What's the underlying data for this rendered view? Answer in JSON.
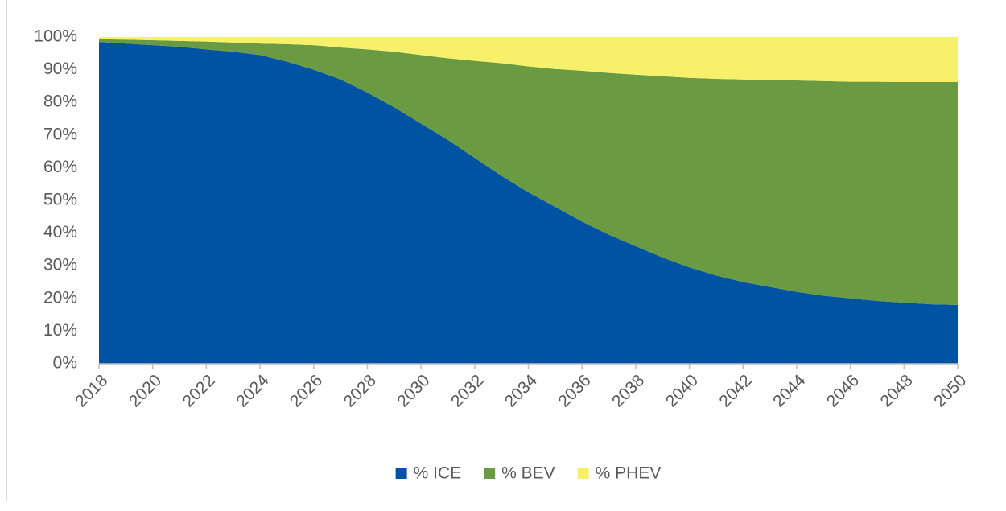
{
  "chart_data": {
    "type": "stacked_area",
    "x": [
      2018,
      2019,
      2020,
      2021,
      2022,
      2023,
      2024,
      2025,
      2026,
      2027,
      2028,
      2029,
      2030,
      2031,
      2032,
      2033,
      2034,
      2035,
      2036,
      2037,
      2038,
      2039,
      2040,
      2041,
      2042,
      2043,
      2044,
      2045,
      2046,
      2047,
      2048,
      2049,
      2050
    ],
    "series": [
      {
        "name": "% ICE",
        "color": "#0052a3",
        "values": [
          98.5,
          98,
          97.5,
          97,
          96.2,
          95.5,
          94.5,
          92.5,
          90,
          87,
          83,
          78.5,
          73.5,
          68.5,
          63,
          57.5,
          52.5,
          48,
          43.5,
          39.5,
          36,
          32.5,
          29.5,
          27,
          25,
          23.5,
          22,
          20.8,
          20,
          19.2,
          18.7,
          18.2,
          18
        ]
      },
      {
        "name": "% BEV",
        "color": "#6a9a42",
        "values": [
          0.8,
          1.2,
          1.5,
          1.8,
          2.4,
          2.8,
          3.5,
          5.3,
          7.5,
          9.8,
          13.2,
          17,
          21,
          25,
          29.7,
          34.5,
          38.5,
          42.2,
          46.2,
          49.5,
          52.5,
          55.5,
          58,
          60.2,
          62,
          63.3,
          64.7,
          65.7,
          66.3,
          67.1,
          67.5,
          68,
          68.2
        ]
      },
      {
        "name": "% PHEV",
        "color": "#f7f06a",
        "values": [
          0.7,
          0.8,
          1,
          1.2,
          1.4,
          1.7,
          2,
          2.2,
          2.5,
          3.2,
          3.8,
          4.5,
          5.5,
          6.5,
          7.3,
          8,
          9,
          9.8,
          10.3,
          11,
          11.5,
          12,
          12.5,
          12.8,
          13,
          13.2,
          13.3,
          13.5,
          13.7,
          13.7,
          13.8,
          13.8,
          13.8
        ]
      }
    ],
    "xlim": [
      2018,
      2050
    ],
    "xticks": [
      2018,
      2020,
      2022,
      2024,
      2026,
      2028,
      2030,
      2032,
      2034,
      2036,
      2038,
      2040,
      2042,
      2044,
      2046,
      2048,
      2050
    ],
    "ylim": [
      0,
      100
    ],
    "yticks": [
      {
        "value": 0,
        "label": "0%"
      },
      {
        "value": 10,
        "label": "10%"
      },
      {
        "value": 20,
        "label": "20%"
      },
      {
        "value": 30,
        "label": "30%"
      },
      {
        "value": 40,
        "label": "40%"
      },
      {
        "value": 50,
        "label": "50%"
      },
      {
        "value": 60,
        "label": "60%"
      },
      {
        "value": 70,
        "label": "70%"
      },
      {
        "value": 80,
        "label": "80%"
      },
      {
        "value": 90,
        "label": "90%"
      },
      {
        "value": 100,
        "label": "100%"
      }
    ],
    "legend": "bottom"
  }
}
